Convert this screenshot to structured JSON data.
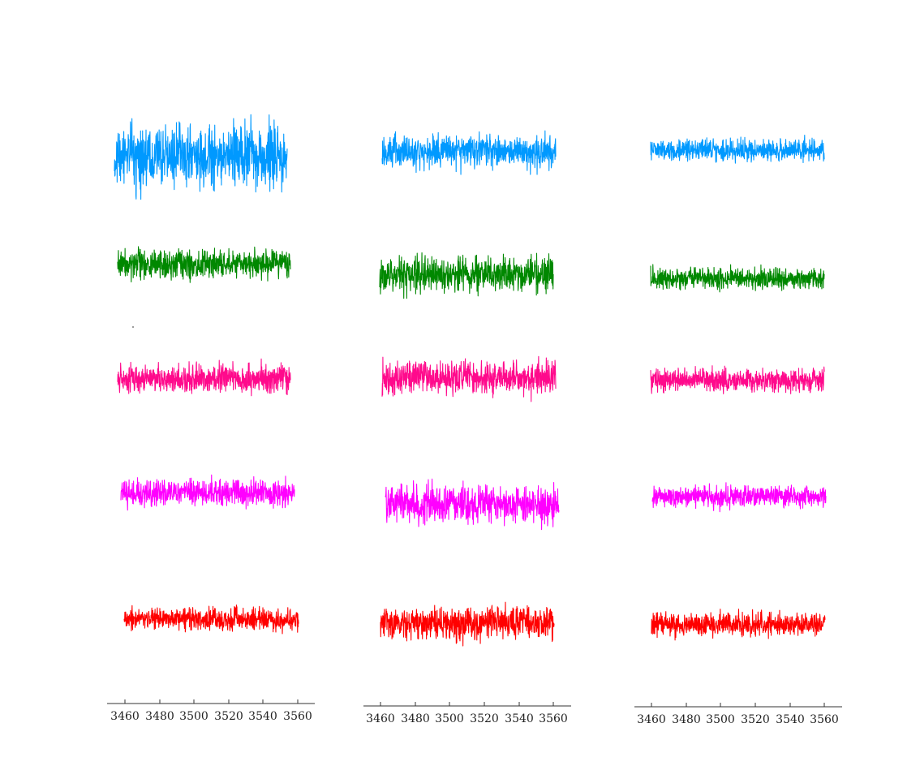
{
  "chart_data": [
    {
      "type": "line",
      "x_range": [
        3460,
        3560
      ],
      "xlim": [
        3455,
        3566
      ],
      "xticks": [
        "3460",
        "3480",
        "3500",
        "3520",
        "3540",
        "3560"
      ],
      "grid": false,
      "legend": "none",
      "series": [
        {
          "color": "#0099ff",
          "level": 0.0,
          "amplitude": 1.0
        },
        {
          "color": "#008800",
          "level": 0.0,
          "amplitude": 0.45
        },
        {
          "color": "#ff0a8c",
          "level": 0.0,
          "amplitude": 0.45
        },
        {
          "color": "#ff00ff",
          "level": 0.0,
          "amplitude": 0.4
        },
        {
          "color": "#ff0000",
          "level": 0.0,
          "amplitude": 0.35
        }
      ]
    },
    {
      "type": "line",
      "x_range": [
        3460,
        3560
      ],
      "xlim": [
        3455,
        3566
      ],
      "xticks": [
        "3460",
        "3480",
        "3500",
        "3520",
        "3540",
        "3560"
      ],
      "grid": false,
      "legend": "none",
      "series": [
        {
          "color": "#0099ff",
          "level": 0.0,
          "amplitude": 0.45
        },
        {
          "color": "#008800",
          "level": 0.0,
          "amplitude": 0.5
        },
        {
          "color": "#ff0a8c",
          "level": 0.0,
          "amplitude": 0.5
        },
        {
          "color": "#ff00ff",
          "level": 0.0,
          "amplitude": 0.55
        },
        {
          "color": "#ff0000",
          "level": 0.0,
          "amplitude": 0.5
        }
      ]
    },
    {
      "type": "line",
      "x_range": [
        3460,
        3560
      ],
      "xlim": [
        3455,
        3566
      ],
      "xticks": [
        "3460",
        "3480",
        "3500",
        "3520",
        "3540",
        "3560"
      ],
      "grid": false,
      "legend": "none",
      "series": [
        {
          "color": "#0099ff",
          "level": 0.0,
          "amplitude": 0.3
        },
        {
          "color": "#008800",
          "level": 0.0,
          "amplitude": 0.3
        },
        {
          "color": "#ff0a8c",
          "level": 0.0,
          "amplitude": 0.3
        },
        {
          "color": "#ff00ff",
          "level": 0.0,
          "amplitude": 0.28
        },
        {
          "color": "#ff0000",
          "level": 0.0,
          "amplitude": 0.32
        }
      ]
    }
  ]
}
